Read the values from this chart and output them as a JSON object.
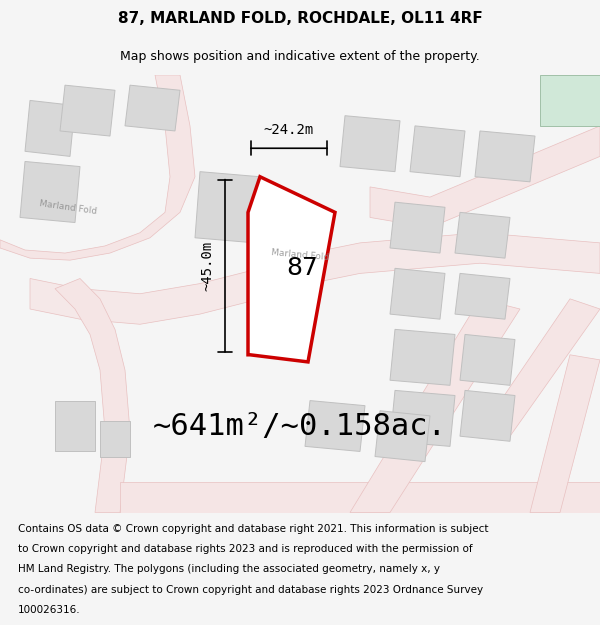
{
  "title_line1": "87, MARLAND FOLD, ROCHDALE, OL11 4RF",
  "title_line2": "Map shows position and indicative extent of the property.",
  "area_text": "~641m²/~0.158ac.",
  "dim_vertical": "~45.0m",
  "dim_horizontal": "~24.2m",
  "label_number": "87",
  "footer_text": "Contains OS data © Crown copyright and database right 2021. This information is subject to Crown copyright and database rights 2023 and is reproduced with the permission of HM Land Registry. The polygons (including the associated geometry, namely x, y co-ordinates) are subject to Crown copyright and database rights 2023 Ordnance Survey 100026316.",
  "bg_color": "#f5f5f5",
  "map_bg": "#f9f7f5",
  "road_color": "#f0c0c0",
  "road_outline": "#e08080",
  "building_fill": "#d8d8d8",
  "building_outline": "#c0c0c0",
  "highlight_fill": "none",
  "highlight_outline": "#cc0000",
  "highlight_lw": 2.5,
  "green_area": "#d0e8d8",
  "title_fontsize": 11,
  "subtitle_fontsize": 9,
  "area_fontsize": 22,
  "dim_fontsize": 10,
  "label_fontsize": 18,
  "footer_fontsize": 7.5
}
